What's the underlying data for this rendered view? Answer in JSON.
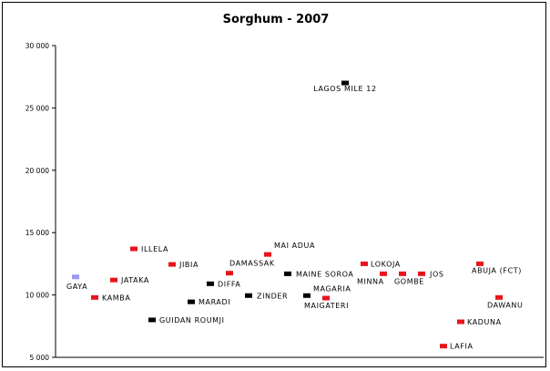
{
  "chart_data": {
    "type": "scatter",
    "title": "Sorghum - 2007",
    "xlabel": "",
    "ylabel": "",
    "ylim": [
      5000,
      30000
    ],
    "yticks": [
      5000,
      10000,
      15000,
      20000,
      25000,
      30000
    ],
    "ytick_labels": [
      "5 000",
      "10 000",
      "15 000",
      "20 000",
      "25 000",
      "30 000"
    ],
    "grid": false,
    "legend": "none",
    "colors": {
      "red": "#e8141c",
      "black": "#000000",
      "blue": "#9999ee"
    },
    "points": [
      {
        "label": "GAYA",
        "x": 1,
        "y": 11450,
        "color": "blue"
      },
      {
        "label": "KAMBA",
        "x": 2,
        "y": 9800,
        "color": "red"
      },
      {
        "label": "JATAKA",
        "x": 3,
        "y": 11200,
        "color": "red"
      },
      {
        "label": "ILLELA",
        "x": 4,
        "y": 13700,
        "color": "red"
      },
      {
        "label": "GUIDAN ROUMJI",
        "x": 5,
        "y": 8000,
        "color": "black"
      },
      {
        "label": "JIBIA",
        "x": 6,
        "y": 12450,
        "color": "red"
      },
      {
        "label": "MARADI",
        "x": 7,
        "y": 9450,
        "color": "black"
      },
      {
        "label": "DIFFA",
        "x": 8,
        "y": 10900,
        "color": "black"
      },
      {
        "label": "DAMASSAK",
        "x": 9,
        "y": 11750,
        "color": "red"
      },
      {
        "label": "ZINDER",
        "x": 10,
        "y": 9950,
        "color": "black"
      },
      {
        "label": "MAI ADUA",
        "x": 11,
        "y": 13250,
        "color": "red"
      },
      {
        "label": "MAINE SOROA",
        "x": 12,
        "y": 11700,
        "color": "black"
      },
      {
        "label": "MAGARIA",
        "x": 13,
        "y": 9950,
        "color": "black"
      },
      {
        "label": "MAIGATERI",
        "x": 14,
        "y": 9750,
        "color": "red"
      },
      {
        "label": "LAGOS MILE 12",
        "x": 15,
        "y": 27000,
        "color": "black"
      },
      {
        "label": "LOKOJA",
        "x": 16,
        "y": 12500,
        "color": "red"
      },
      {
        "label": "MINNA",
        "x": 17,
        "y": 11700,
        "color": "red"
      },
      {
        "label": "GOMBE",
        "x": 18,
        "y": 11700,
        "color": "red"
      },
      {
        "label": "JOS",
        "x": 19,
        "y": 11700,
        "color": "red"
      },
      {
        "label": "LAFIA",
        "x": 20,
        "y": 5900,
        "color": "red"
      },
      {
        "label": "KADUNA",
        "x": 21,
        "y": 7850,
        "color": "red"
      },
      {
        "label": "ABUJA (FCT)",
        "x": 22,
        "y": 12500,
        "color": "red"
      },
      {
        "label": "DAWANU",
        "x": 23,
        "y": 9800,
        "color": "red"
      }
    ]
  }
}
